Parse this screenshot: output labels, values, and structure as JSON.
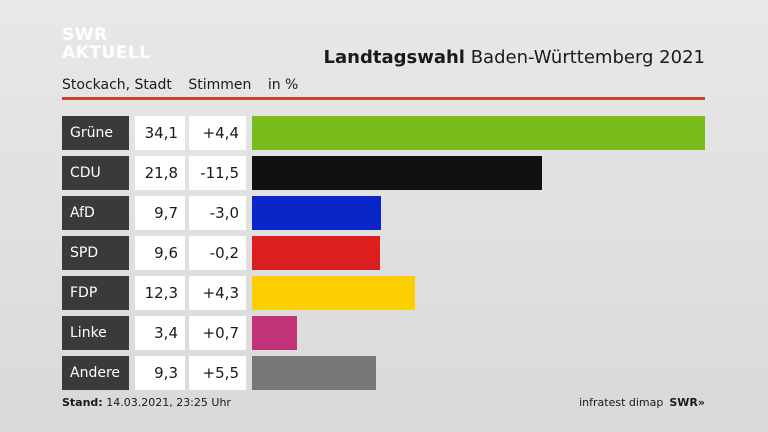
{
  "brand": {
    "line1": "SWR",
    "line2": "AKTUELL",
    "footer_logo": "SWR»"
  },
  "header": {
    "title_bold": "Landtagswahl",
    "title_rest": " Baden-Württemberg 2021"
  },
  "subhead": {
    "location": "Stockach, Stadt",
    "measure": "Stimmen",
    "unit": "in %"
  },
  "footer": {
    "stand_label": "Stand:",
    "stand_value": " 14.03.2021, 23:25 Uhr",
    "source": "infratest dimap"
  },
  "chart_data": {
    "type": "bar",
    "title": "Landtagswahl Baden-Württemberg 2021",
    "categories": [
      "Grüne",
      "CDU",
      "AfD",
      "SPD",
      "FDP",
      "Linke",
      "Andere"
    ],
    "values": [
      34.1,
      21.8,
      9.7,
      9.6,
      12.3,
      3.4,
      9.3
    ],
    "value_labels": [
      "34,1",
      "21,8",
      "9,7",
      "9,6",
      "12,3",
      "3,4",
      "9,3"
    ],
    "diff_labels": [
      "+4,4",
      "-11,5",
      "-3,0",
      "-0,2",
      "+4,3",
      "+0,7",
      "+5,5"
    ],
    "colors": [
      "#78bc1c",
      "#111111",
      "#0a26c8",
      "#dc1e1e",
      "#fccf00",
      "#c2337a",
      "#777777"
    ],
    "xlim": [
      0,
      34.1
    ]
  }
}
